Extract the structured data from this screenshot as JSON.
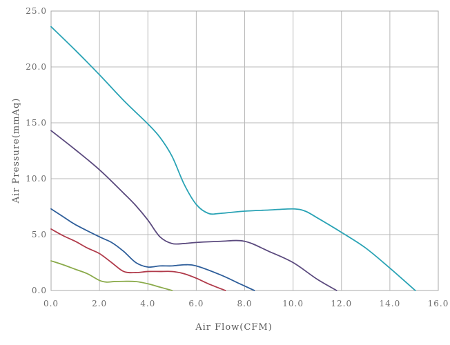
{
  "chart_data": {
    "type": "line",
    "xlabel": "Air Flow(CFM)",
    "ylabel": "Air Pressure(mmAq)",
    "xlim": [
      0,
      16
    ],
    "ylim": [
      0,
      25
    ],
    "x_ticks": [
      0,
      2,
      4,
      6,
      8,
      10,
      12,
      14,
      16
    ],
    "y_ticks": [
      0,
      5,
      10,
      15,
      20,
      25
    ],
    "x_tick_labels": [
      "0.0",
      "2.0",
      "4.0",
      "6.0",
      "8.0",
      "10.0",
      "12.0",
      "14.0",
      "16.0"
    ],
    "y_tick_labels": [
      "0.0",
      "5.0",
      "10.0",
      "15.0",
      "20.0",
      "25.0"
    ],
    "grid": true,
    "legend": "none",
    "series": [
      {
        "color": "#2aa3b5",
        "x": [
          0,
          1,
          2,
          3,
          4,
          4.5,
          5,
          5.5,
          6,
          6.5,
          7,
          8,
          9,
          10,
          10.5,
          11,
          12,
          13,
          14,
          15.05
        ],
        "y": [
          23.6,
          21.5,
          19.3,
          17.0,
          14.9,
          13.7,
          12.0,
          9.5,
          7.7,
          6.9,
          6.9,
          7.1,
          7.2,
          7.3,
          7.1,
          6.5,
          5.2,
          3.8,
          2.0,
          0
        ]
      },
      {
        "color": "#5b4a7e",
        "x": [
          0,
          1,
          2,
          3,
          3.5,
          4,
          4.5,
          5,
          5.5,
          6,
          7,
          8,
          9,
          10,
          11,
          11.8
        ],
        "y": [
          14.3,
          12.6,
          10.8,
          8.7,
          7.6,
          6.3,
          4.8,
          4.2,
          4.2,
          4.3,
          4.4,
          4.4,
          3.5,
          2.5,
          1.0,
          0
        ]
      },
      {
        "color": "#2e5e9a",
        "x": [
          0,
          0.5,
          1,
          2,
          2.5,
          3,
          3.5,
          4,
          4.5,
          5,
          5.5,
          6,
          7,
          7.8,
          8.4
        ],
        "y": [
          7.3,
          6.6,
          5.9,
          4.8,
          4.3,
          3.5,
          2.5,
          2.1,
          2.2,
          2.2,
          2.3,
          2.2,
          1.4,
          0.6,
          0
        ]
      },
      {
        "color": "#b03a4a",
        "x": [
          0,
          0.5,
          1,
          1.5,
          2,
          2.5,
          3,
          3.5,
          4,
          4.5,
          5,
          5.5,
          6,
          6.5,
          7.2
        ],
        "y": [
          5.5,
          4.9,
          4.4,
          3.8,
          3.3,
          2.5,
          1.7,
          1.6,
          1.7,
          1.7,
          1.7,
          1.5,
          1.1,
          0.6,
          0
        ]
      },
      {
        "color": "#8aaa4a",
        "x": [
          0,
          0.5,
          1,
          1.5,
          2,
          2.3,
          2.6,
          3,
          3.5,
          4,
          4.5,
          5
        ],
        "y": [
          2.65,
          2.3,
          1.9,
          1.5,
          0.9,
          0.75,
          0.8,
          0.82,
          0.8,
          0.6,
          0.3,
          0
        ]
      }
    ]
  }
}
